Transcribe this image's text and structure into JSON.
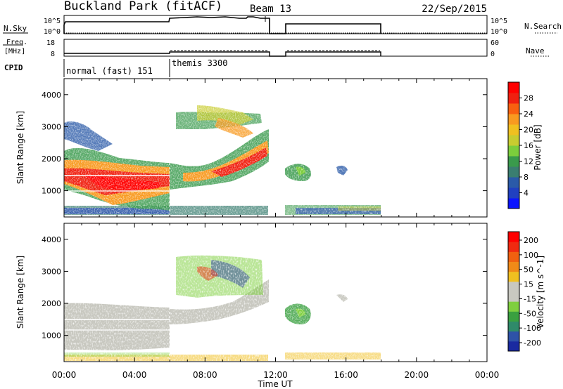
{
  "header": {
    "station": "Buckland Park (fitACF)",
    "beam": "Beam 13",
    "date": "22/Sep/2015"
  },
  "param_rows": {
    "nsky_label": "N.Sky",
    "nsky_ticks": [
      "10^5",
      "10^0"
    ],
    "nsearch_label": "N.Search",
    "nsearch_ticks": [
      "10^5",
      "10^0"
    ],
    "freq_label_1": "Freq.",
    "freq_label_2": "[MHz]",
    "freq_ticks": [
      "18",
      "8"
    ],
    "nave_label": "Nave",
    "nave_ticks": [
      "60",
      "0"
    ],
    "cpid_label": "CPID",
    "cpid_segments": [
      {
        "label": "normal (fast) 151",
        "start_hour": 0,
        "end_hour": 6
      },
      {
        "label": "themis 3300",
        "start_hour": 6,
        "end_hour": 24
      }
    ]
  },
  "chart_data": [
    {
      "type": "heatmap",
      "parameter": "Power",
      "ylabel": "Slant Range [km]",
      "yticks": [
        1000,
        2000,
        3000,
        4000
      ],
      "ylim": [
        180,
        4500
      ],
      "xlim": [
        0,
        24
      ],
      "colorbar": {
        "label": "Power [dB]",
        "ticks": [
          "4",
          "8",
          "12",
          "16",
          "20",
          "24",
          "28"
        ],
        "colors": [
          "#0a14ff",
          "#2040c0",
          "#2a5aa8",
          "#3a7e70",
          "#3a9a4c",
          "#7ccd3c",
          "#c8cc30",
          "#f0c020",
          "#f89a20",
          "#f86010",
          "#f02010",
          "#ff0000"
        ]
      }
    },
    {
      "type": "heatmap",
      "parameter": "Velocity",
      "ylabel": "Slant Range [km]",
      "yticks": [
        1000,
        2000,
        3000,
        4000
      ],
      "ylim": [
        180,
        4500
      ],
      "xlim": [
        0,
        24
      ],
      "colorbar": {
        "label": "Velocity [m s^-1]",
        "ticks": [
          "200",
          "100",
          "50",
          "15",
          "-15",
          "-50",
          "-100",
          "-200"
        ],
        "colors": [
          "#1a2aa0",
          "#2e52a8",
          "#2f8a6a",
          "#3aa040",
          "#7fcf3f",
          "#c8c8c0",
          "#c8c8c0",
          "#f0c020",
          "#f08a18",
          "#f06010",
          "#f02a10",
          "#ff0000"
        ]
      }
    }
  ],
  "xaxis": {
    "label": "Time UT",
    "ticks": [
      "00:00",
      "04:00",
      "08:00",
      "12:00",
      "16:00",
      "20:00",
      "00:00"
    ],
    "tick_hours": [
      0,
      4,
      8,
      12,
      16,
      20,
      24
    ]
  }
}
